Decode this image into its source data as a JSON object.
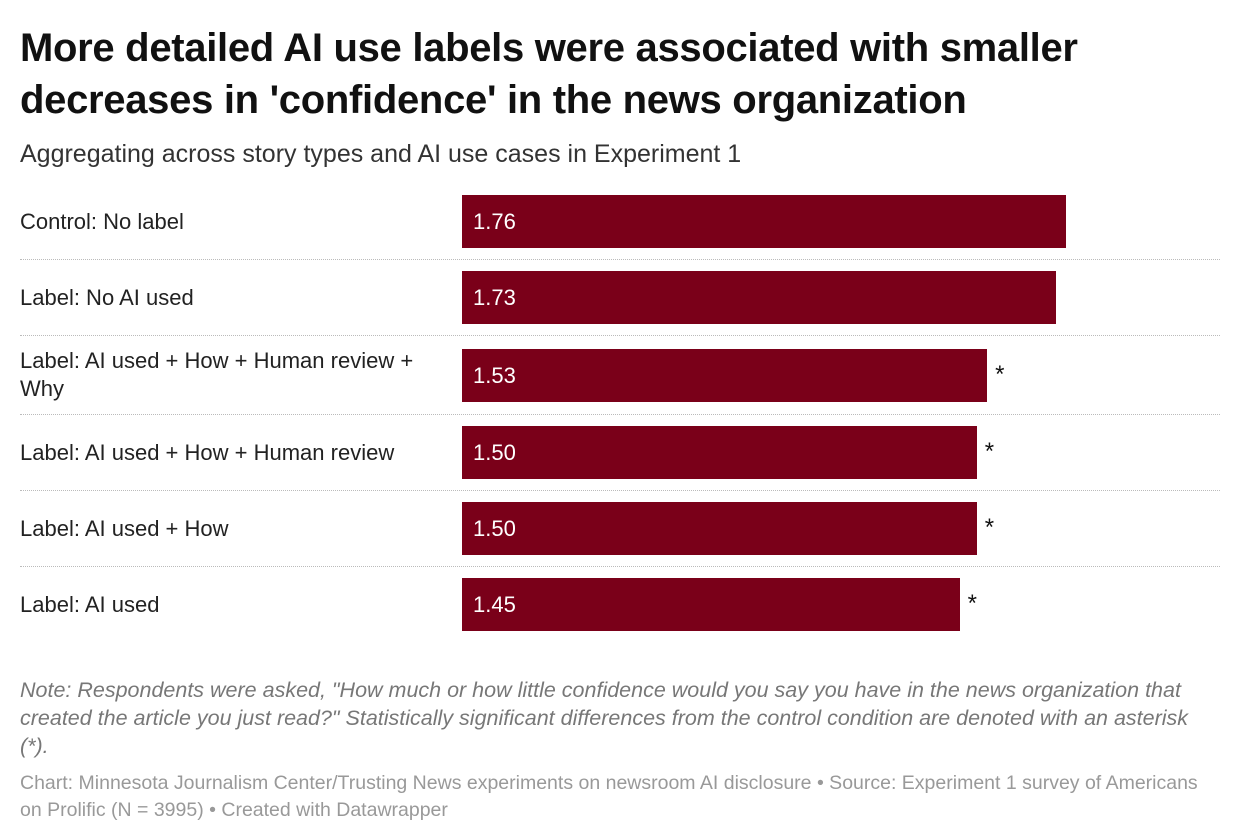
{
  "chart_data": {
    "type": "bar",
    "orientation": "horizontal",
    "title": "More detailed AI use labels were associated with smaller decreases in 'confidence' in the news organization",
    "subtitle": "Aggregating across story types and AI use cases in Experiment 1",
    "categories": [
      "Control: No label",
      "Label: No AI used",
      "Label: AI used + How + Human review + Why",
      "Label: AI used + How + Human review",
      "Label: AI used + How",
      "Label: AI used"
    ],
    "values": [
      1.76,
      1.73,
      1.53,
      1.5,
      1.5,
      1.45
    ],
    "value_labels": [
      "1.76",
      "1.73",
      "1.53",
      "1.50",
      "1.50",
      "1.45"
    ],
    "significance": [
      null,
      null,
      "*",
      "*",
      "*",
      "*"
    ],
    "color": "#7a0019",
    "note": "Note: Respondents were asked, \"How much or how little confidence would you say you have in the news organization that created the article you just read?\" Statistically significant differences from the control condition are denoted with an asterisk (*).",
    "source": "Chart: Minnesota Journalism Center/Trusting News experiments on newsroom AI disclosure • Source: Experiment 1 survey of Americans on Prolific (N = 3995) • Created with Datawrapper"
  }
}
